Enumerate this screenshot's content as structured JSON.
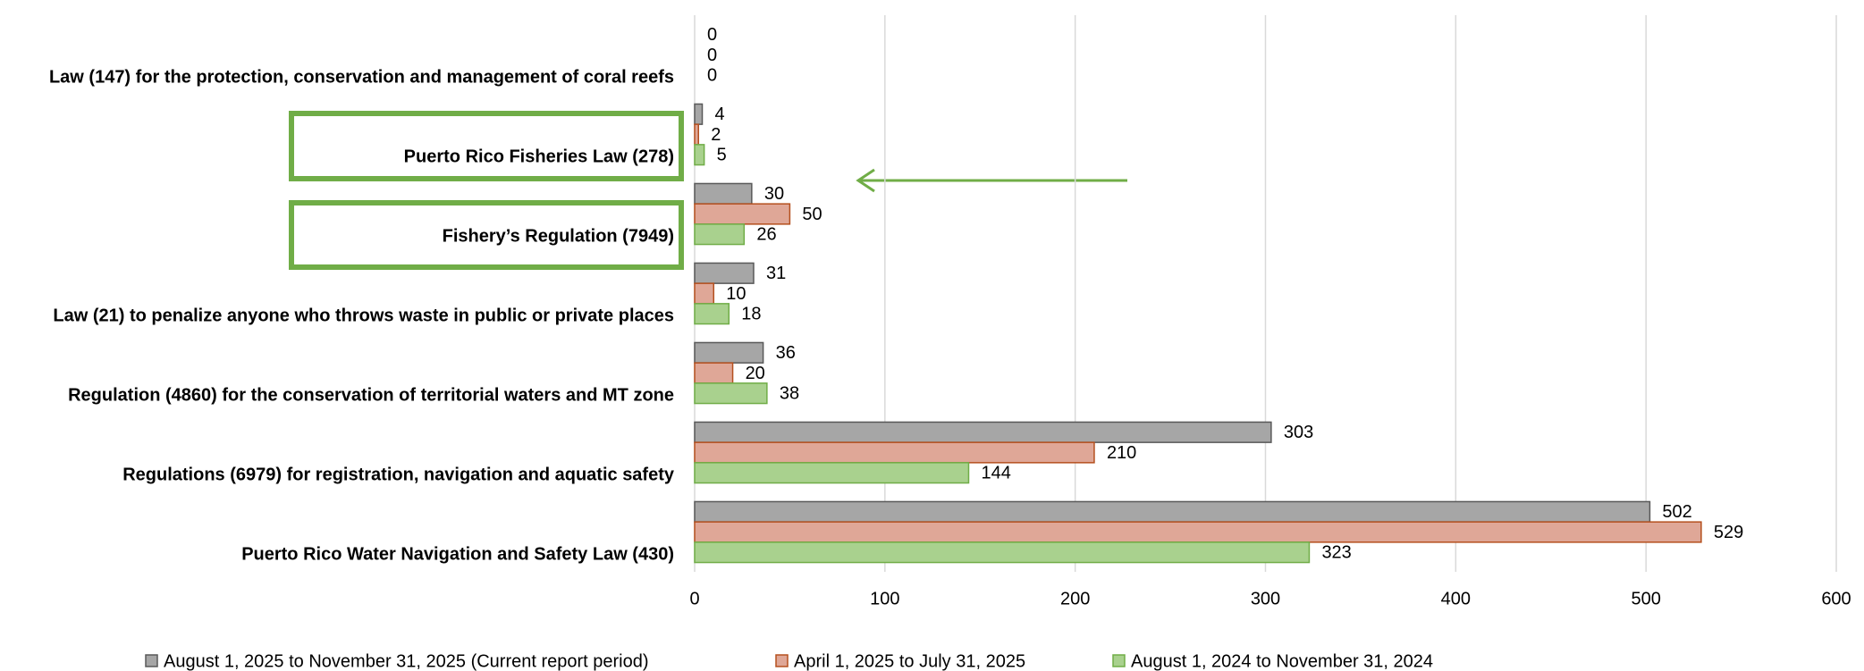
{
  "chart_data": {
    "type": "bar",
    "orientation": "horizontal",
    "categories": [
      "Law (147) for the protection, conservation and management of coral reefs",
      "Puerto Rico Fisheries Law (278)",
      "Fishery’s Regulation (7949)",
      "Law (21) to penalize anyone who throws waste in public or private places",
      "Regulation (4860) for the conservation of territorial waters and MT zone",
      "Regulations (6979) for registration, navigation and aquatic safety",
      "Puerto Rico Water Navigation and Safety Law (430)"
    ],
    "series": [
      {
        "name": "August 1, 2025 to November 31, 2025  (Current report period)",
        "color": "#a6a6a6",
        "stroke": "#595959",
        "values": [
          0,
          4,
          30,
          31,
          36,
          303,
          502
        ]
      },
      {
        "name": "April 1, 2025 to July 31, 2025",
        "color": "#dfa797",
        "stroke": "#b5501f",
        "values": [
          0,
          2,
          50,
          10,
          20,
          210,
          529
        ]
      },
      {
        "name": "August 1, 2024 to November 31, 2024",
        "color": "#a9d18e",
        "stroke": "#70ad47",
        "values": [
          0,
          5,
          26,
          18,
          38,
          144,
          323
        ]
      }
    ],
    "xlim": [
      0,
      600
    ],
    "xticks": [
      0,
      100,
      200,
      300,
      400,
      500,
      600
    ],
    "grid": true,
    "legend": "bottom"
  }
}
